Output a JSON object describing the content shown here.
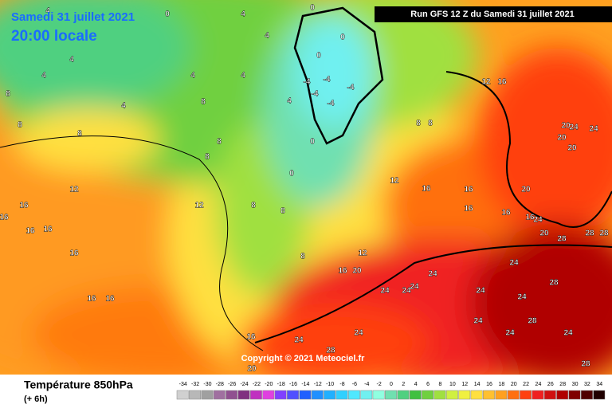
{
  "header": {
    "date": "Samedi 31 juillet 2021",
    "time": "20:00 locale",
    "run": "Run GFS 12 Z du Samedi 31 juillet 2021",
    "copyright": "Copyright © 2021 Meteociel.fr"
  },
  "footer": {
    "title": "Température 850hPa",
    "step": "(+ 6h)"
  },
  "scale": {
    "values": [
      -34,
      -32,
      -30,
      -28,
      -26,
      -24,
      -22,
      -20,
      -18,
      -16,
      -14,
      -12,
      -10,
      -8,
      -6,
      -4,
      -2,
      0,
      2,
      4,
      6,
      8,
      10,
      12,
      14,
      16,
      18,
      20,
      22,
      24,
      26,
      28,
      30,
      32,
      34
    ],
    "colors": [
      "#d0d0d0",
      "#b8b8b8",
      "#a0a0a0",
      "#a070a0",
      "#905090",
      "#803080",
      "#c030c0",
      "#e040e0",
      "#8040ff",
      "#5050ff",
      "#2060ff",
      "#2090ff",
      "#20b0ff",
      "#30d0ff",
      "#50e8ff",
      "#70f0f0",
      "#90ffe0",
      "#70e0b0",
      "#50d080",
      "#40c040",
      "#70d040",
      "#a0e040",
      "#d0f040",
      "#f0f040",
      "#ffe040",
      "#ffc030",
      "#ffa020",
      "#ff7010",
      "#ff4010",
      "#f02020",
      "#d01010",
      "#b00000",
      "#800000",
      "#500000",
      "#200000"
    ]
  },
  "map": {
    "labels": [
      0,
      0,
      0,
      0,
      0,
      0,
      -4,
      -4,
      -4,
      -4,
      -4,
      4,
      4,
      4,
      4,
      4,
      4,
      4,
      4,
      4,
      8,
      8,
      8,
      8,
      8,
      8,
      8,
      8,
      8,
      8,
      8,
      12,
      12,
      12,
      12,
      12,
      16,
      16,
      16,
      16,
      16,
      16,
      16,
      16,
      16,
      16,
      16,
      16,
      16,
      16,
      16,
      20,
      20,
      20,
      20,
      20,
      20,
      20,
      24,
      24,
      24,
      24,
      24,
      24,
      24,
      24,
      24,
      24,
      24,
      24,
      24,
      24,
      24,
      28,
      28,
      28,
      28,
      28,
      28,
      28
    ]
  }
}
